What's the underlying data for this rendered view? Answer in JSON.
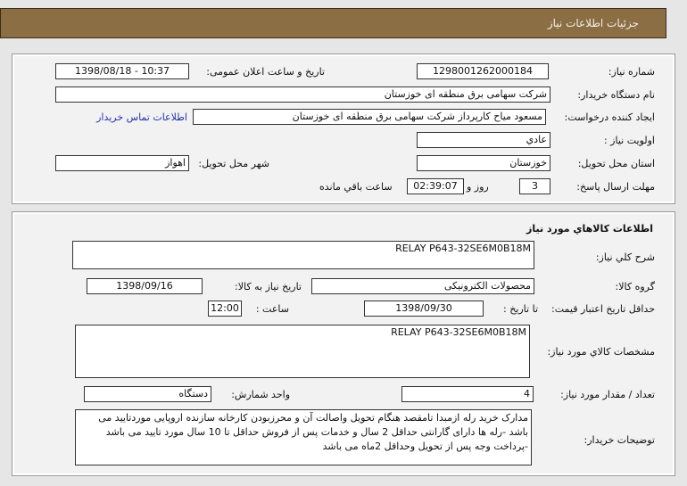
{
  "header": {
    "title": "جزئیات اطلاعات نیاز"
  },
  "info": {
    "need_number_label": "شماره نیاز:",
    "need_number": "1298001262000184",
    "announce_label": "تاریخ و ساعت اعلان عمومی:",
    "announce_value": "1398/08/18 - 10:37",
    "buyer_label": "نام دستگاه خریدار:",
    "buyer": "شرکت سهامی برق منطقه ای خوزستان",
    "creator_label": "ایجاد کننده درخواست:",
    "creator": "مسعود میاح کارپرداز شرکت سهامی برق منطقه ای خوزستان",
    "contact_link": "اطلاعات تماس خریدار",
    "priority_label": "اولویت نیاز :",
    "priority": "عادي",
    "province_label": "استان محل تحویل:",
    "province": "خوزستان",
    "city_label": "شهر محل تحویل:",
    "city": "اهواز",
    "deadline_label": "مهلت ارسال پاسخ:",
    "days": "3",
    "days_suffix": "روز و",
    "time_left": "02:39:07",
    "time_suffix": "ساعت باقي مانده"
  },
  "goods": {
    "title": "اطلاعات کالاهاي مورد نیاز",
    "summary_label": "شرح کلي نیاز:",
    "summary": "RELAY P643-32SE6M0B18M",
    "group_label": "گروه کالا:",
    "group": "محصولات الکترونیکی",
    "need_date_label": "تاریخ نیاز به کالا:",
    "need_date": "1398/09/16",
    "validity_label": "حداقل تاریخ اعتبار قیمت:",
    "to_date_label": "تا تاریخ :",
    "to_date": "1398/09/30",
    "hour_label": "ساعت :",
    "hour": "12:00",
    "specs_label": "مشخصات کالاي مورد نیاز:",
    "specs": "RELAY P643-32SE6M0B18M",
    "qty_label": "تعداد / مقدار مورد نیاز:",
    "qty": "4",
    "unit_label": "واحد شمارش:",
    "unit": "دستگاه",
    "notes_label": "توضیحات خریدار:",
    "notes": "مدارک خرید رله ازمبدا تامقصد هنگام تحویل واصالت آن و محرزبودن کارخانه سازنده اروپایی موردتایید می باشد -رله ها دارای گارانتی حداقل 2 سال و خدمات پس از فروش حداقل تا 10 سال مورد تایید می باشد -پرداخت وجه پس از تحویل وحداقل 2ماه می باشد"
  }
}
